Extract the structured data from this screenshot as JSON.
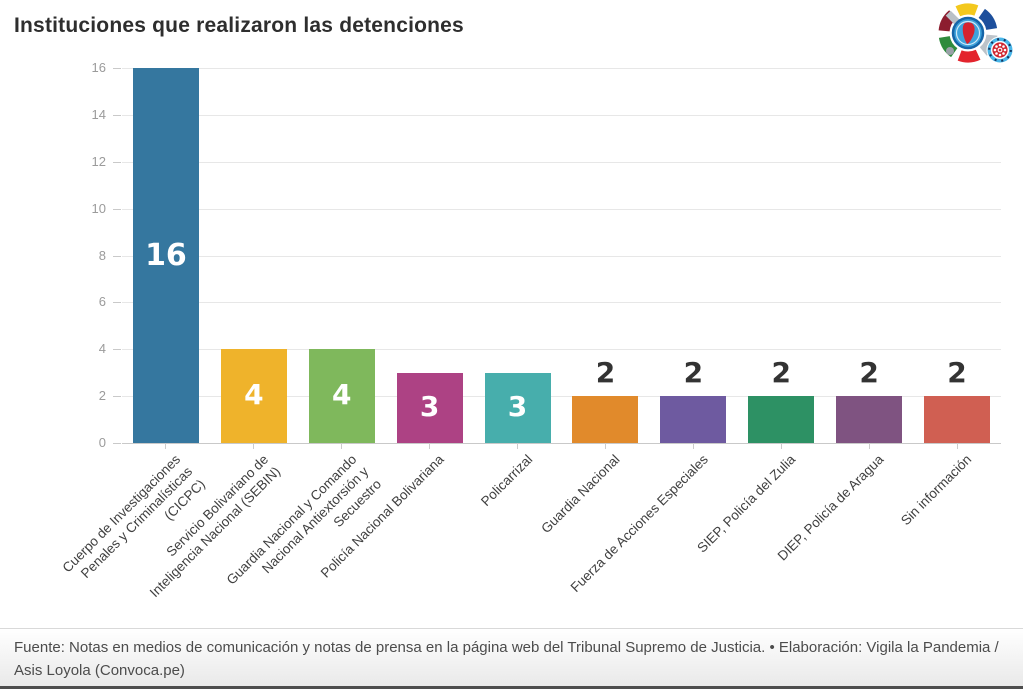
{
  "header": {
    "title": "Instituciones que realizaron las detenciones"
  },
  "chart_data": {
    "type": "bar",
    "title": "Instituciones que realizaron las detenciones",
    "categories": [
      [
        "Cuerpo de Investigaciones",
        "Penales y Criminalísticas",
        "(CICPC)"
      ],
      [
        "Servicio Bolivariano de",
        "Inteligencia Nacional (SEBIN)"
      ],
      [
        "Guardia Nacional y Comando",
        "Nacional Antiextorsión y",
        "Secuestro"
      ],
      [
        "Policía Nacional Bolivariana"
      ],
      [
        "Policarrizal"
      ],
      [
        "Guardia Nacional"
      ],
      [
        "Fuerza de Acciones Especiales"
      ],
      [
        "SIEP, Policía del Zulia"
      ],
      [
        "DIEP, Policía de Aragua"
      ],
      [
        "Sin información"
      ]
    ],
    "values": [
      16,
      4,
      4,
      3,
      3,
      2,
      2,
      2,
      2,
      2
    ],
    "bar_colors": [
      "#35779F",
      "#EFB32B",
      "#7FB85C",
      "#AD4284",
      "#47AEAC",
      "#E18A2B",
      "#6E5AA0",
      "#2D9164",
      "#7F5381",
      "#D05F52"
    ],
    "xlabel": "",
    "ylabel": "",
    "ylim": [
      0,
      16
    ],
    "yticks": [
      0,
      2,
      4,
      6,
      8,
      10,
      12,
      14,
      16
    ],
    "grid": true,
    "legend": "none",
    "value_label_color_inside": "#ffffff",
    "value_label_color_outside": "#333333"
  },
  "footer": {
    "source": "Fuente: Notas en medios de comunicación y notas de prensa en la página web del Tribunal Supremo de Justicia. • Elaboración: Vigila la Pandemia / Asis Loyola (Convoca.pe)"
  }
}
